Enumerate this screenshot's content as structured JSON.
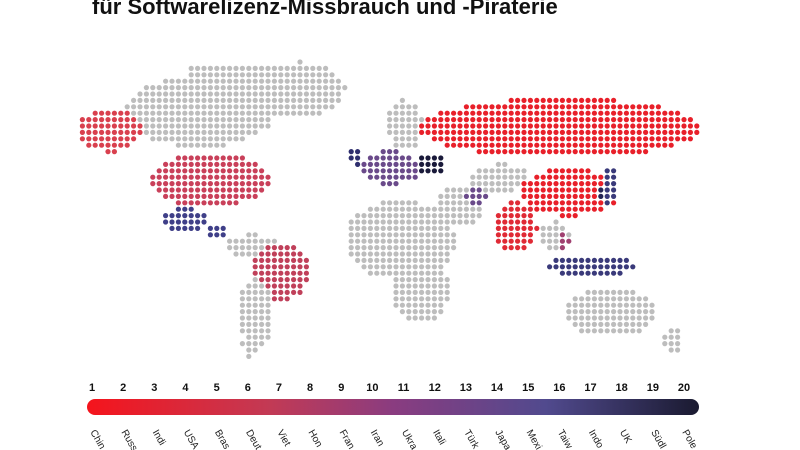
{
  "header": {
    "title": "für Softwarelizenz-Missbrauch und -Piraterie"
  },
  "legend": {
    "ranks": [
      1,
      2,
      3,
      4,
      5,
      6,
      7,
      8,
      9,
      10,
      11,
      12,
      13,
      14,
      15,
      16,
      17,
      18,
      19,
      20
    ],
    "countries": [
      "Chin",
      "Russ",
      "Indi",
      "USA",
      "Bras",
      "Deut",
      "Viet",
      "Hon",
      "Fran",
      "Iran",
      "Ukra",
      "Itali",
      "Türk",
      "Japa",
      "Mexi",
      "Taiw",
      "Indo",
      "UK",
      "Südl",
      "Pole"
    ]
  }
}
